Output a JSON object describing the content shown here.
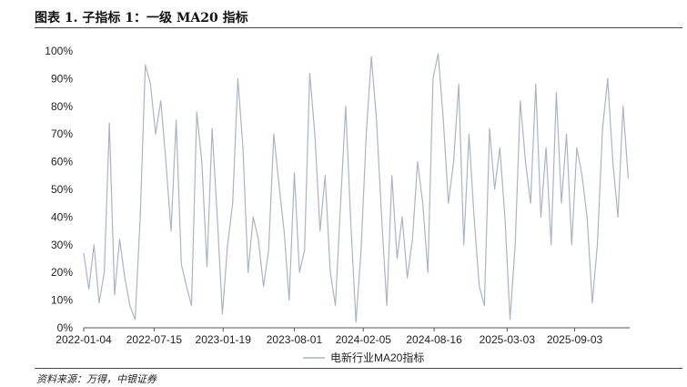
{
  "header": {
    "title": "图表 1. 子指标 1：一级 MA20 指标"
  },
  "footer": {
    "source": "资料来源：万得，中银证券"
  },
  "chart_data": {
    "type": "line",
    "title": "图表 1. 子指标 1：一级 MA20 指标",
    "xlabel": "",
    "ylabel": "",
    "ylim": [
      0,
      100
    ],
    "y_ticks": [
      "0%",
      "10%",
      "20%",
      "30%",
      "40%",
      "50%",
      "60%",
      "70%",
      "80%",
      "90%",
      "100%"
    ],
    "x_ticks": [
      "2022-01-04",
      "2022-07-15",
      "2023-01-19",
      "2023-08-01",
      "2024-02-05",
      "2024-08-16",
      "2025-03-03",
      "2025-09-03"
    ],
    "x_range": [
      "2022-01-04",
      "2026-01-31"
    ],
    "legend": {
      "position": "bottom",
      "entries": [
        "电新行业MA20指标"
      ]
    },
    "grid": false,
    "series": [
      {
        "name": "电新行业MA20指标",
        "color": "#a9b4c6",
        "x": [
          "2022-01-04",
          "2022-01-18",
          "2022-02-01",
          "2022-02-15",
          "2022-03-01",
          "2022-03-15",
          "2022-03-29",
          "2022-04-12",
          "2022-04-26",
          "2022-05-10",
          "2022-05-24",
          "2022-06-07",
          "2022-06-21",
          "2022-07-05",
          "2022-07-19",
          "2022-08-02",
          "2022-08-16",
          "2022-08-30",
          "2022-09-13",
          "2022-09-27",
          "2022-10-11",
          "2022-10-25",
          "2022-11-08",
          "2022-11-22",
          "2022-12-06",
          "2022-12-20",
          "2023-01-03",
          "2023-01-17",
          "2023-01-31",
          "2023-02-14",
          "2023-02-28",
          "2023-03-14",
          "2023-03-28",
          "2023-04-11",
          "2023-04-25",
          "2023-05-09",
          "2023-05-23",
          "2023-06-06",
          "2023-06-20",
          "2023-07-04",
          "2023-07-18",
          "2023-08-01",
          "2023-08-15",
          "2023-08-29",
          "2023-09-12",
          "2023-09-26",
          "2023-10-10",
          "2023-10-24",
          "2023-11-07",
          "2023-11-21",
          "2023-12-05",
          "2023-12-19",
          "2024-01-02",
          "2024-01-16",
          "2024-01-30",
          "2024-02-13",
          "2024-02-27",
          "2024-03-12",
          "2024-03-26",
          "2024-04-09",
          "2024-04-23",
          "2024-05-07",
          "2024-05-21",
          "2024-06-04",
          "2024-06-18",
          "2024-07-02",
          "2024-07-16",
          "2024-07-30",
          "2024-08-13",
          "2024-08-27",
          "2024-09-10",
          "2024-09-24",
          "2024-10-08",
          "2024-10-22",
          "2024-11-05",
          "2024-11-19",
          "2024-12-03",
          "2024-12-17",
          "2024-12-31",
          "2025-01-14",
          "2025-01-28",
          "2025-02-11",
          "2025-02-25",
          "2025-03-11",
          "2025-03-25",
          "2025-04-08",
          "2025-04-22",
          "2025-05-06",
          "2025-05-20",
          "2025-06-03",
          "2025-06-17",
          "2025-07-01",
          "2025-07-15",
          "2025-07-29",
          "2025-08-12",
          "2025-08-26",
          "2025-09-09",
          "2025-09-23",
          "2025-10-07",
          "2025-10-21",
          "2025-11-04",
          "2025-11-18",
          "2025-12-02",
          "2025-12-16",
          "2025-12-30",
          "2026-01-13",
          "2026-01-27"
        ],
        "values": [
          27,
          14,
          30,
          9,
          20,
          74,
          12,
          32,
          18,
          8,
          3,
          40,
          95,
          88,
          70,
          82,
          60,
          35,
          75,
          23,
          15,
          8,
          78,
          60,
          22,
          72,
          40,
          5,
          30,
          45,
          90,
          65,
          20,
          40,
          32,
          15,
          28,
          70,
          52,
          35,
          10,
          56,
          20,
          28,
          92,
          70,
          35,
          55,
          20,
          8,
          45,
          80,
          38,
          2,
          28,
          70,
          98,
          75,
          40,
          8,
          55,
          25,
          40,
          18,
          32,
          60,
          45,
          20,
          90,
          99,
          75,
          45,
          60,
          88,
          30,
          70,
          40,
          15,
          8,
          72,
          50,
          65,
          40,
          3,
          30,
          82,
          60,
          45,
          88,
          40,
          65,
          30,
          85,
          45,
          70,
          30,
          65,
          55,
          40,
          9,
          30,
          72,
          90,
          60,
          40,
          80,
          54
        ]
      }
    ]
  }
}
